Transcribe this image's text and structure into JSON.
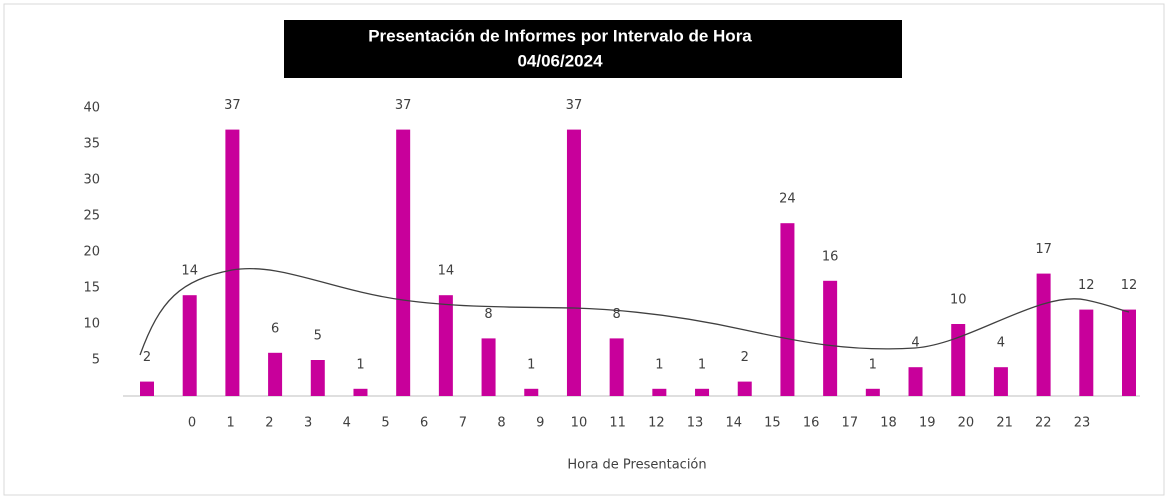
{
  "chart_data": {
    "type": "bar",
    "title": "Presentación de Informes por Intervalo de Hora",
    "subtitle": "04/06/2024",
    "x_label": "Hora de Presentación",
    "categories": [
      "0",
      "1",
      "2",
      "3",
      "4",
      "5",
      "6",
      "7",
      "8",
      "9",
      "10",
      "11",
      "12",
      "13",
      "14",
      "15",
      "16",
      "17",
      "18",
      "19",
      "20",
      "21",
      "22",
      "23"
    ],
    "values": [
      2,
      14,
      37,
      6,
      5,
      1,
      37,
      14,
      8,
      1,
      37,
      8,
      1,
      1,
      2,
      24,
      16,
      1,
      4,
      10,
      4,
      17,
      12,
      12
    ],
    "color": "#c8009b",
    "ylim": [
      0,
      40
    ],
    "yticks": [
      5,
      10,
      15,
      20,
      25,
      30,
      35,
      40
    ]
  }
}
